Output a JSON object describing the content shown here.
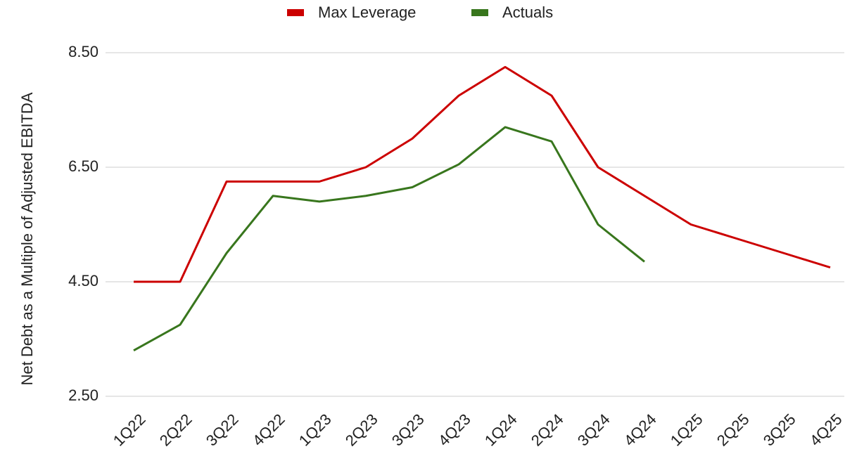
{
  "chart_data": {
    "type": "line",
    "y_label": "Net Debt as a Multiple of Adjusted EBITDA",
    "categories": [
      "1Q22",
      "2Q22",
      "3Q22",
      "4Q22",
      "1Q23",
      "2Q23",
      "3Q23",
      "4Q23",
      "1Q24",
      "2Q24",
      "3Q24",
      "4Q24",
      "1Q25",
      "2Q25",
      "3Q25",
      "4Q25"
    ],
    "series": [
      {
        "name": "Max Leverage",
        "color": "#cc0000",
        "values": [
          4.5,
          4.5,
          6.25,
          6.25,
          6.25,
          6.5,
          7.0,
          7.75,
          8.25,
          7.75,
          6.5,
          6.0,
          5.5,
          5.25,
          5.0,
          4.75
        ]
      },
      {
        "name": "Actuals",
        "color": "#38761d",
        "values": [
          3.3,
          3.75,
          5.0,
          6.0,
          5.9,
          6.0,
          6.15,
          6.55,
          7.2,
          6.95,
          5.5,
          4.85,
          null,
          null,
          null,
          null
        ]
      }
    ],
    "ylim": [
      2.5,
      8.5
    ],
    "yticks": [
      {
        "value": 2.5,
        "label": "2.50"
      },
      {
        "value": 4.5,
        "label": "4.50"
      },
      {
        "value": 6.5,
        "label": "6.50"
      },
      {
        "value": 8.5,
        "label": "8.50"
      }
    ],
    "grid": true,
    "legend": "top"
  }
}
